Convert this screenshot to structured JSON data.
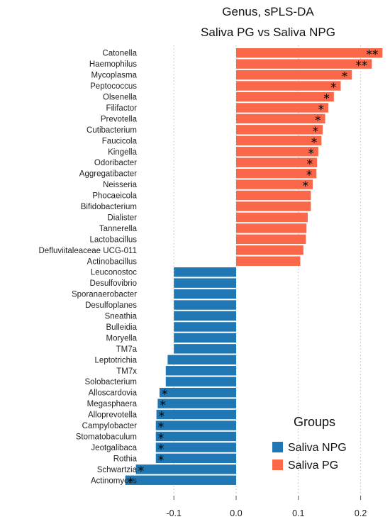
{
  "chart_data": {
    "type": "bar",
    "orientation": "horizontal",
    "title": [
      "Genus, sPLS-DA",
      "Saliva PG vs Saliva NPG"
    ],
    "xlim": [
      -0.19,
      0.24
    ],
    "xticks": [
      -0.1,
      0.0,
      0.1,
      0.2
    ],
    "xtick_labels": [
      "-0.1",
      "0.0",
      "0.1",
      "0.2"
    ],
    "grid": "vertical dotted",
    "legend": {
      "title": "Groups",
      "position": "bottom-right",
      "items": [
        {
          "label": "Saliva NPG",
          "color": "#1f78b4"
        },
        {
          "label": "Saliva PG",
          "color": "#fa6849"
        }
      ]
    },
    "bars": [
      {
        "name": "Catonella",
        "value": 0.235,
        "group": "Saliva PG",
        "sig": "**"
      },
      {
        "name": "Haemophilus",
        "value": 0.218,
        "group": "Saliva PG",
        "sig": "**"
      },
      {
        "name": "Mycoplasma",
        "value": 0.186,
        "group": "Saliva PG",
        "sig": "*"
      },
      {
        "name": "Peptococcus",
        "value": 0.168,
        "group": "Saliva PG",
        "sig": "*"
      },
      {
        "name": "Olsenella",
        "value": 0.157,
        "group": "Saliva PG",
        "sig": "*"
      },
      {
        "name": "Filifactor",
        "value": 0.148,
        "group": "Saliva PG",
        "sig": "*"
      },
      {
        "name": "Prevotella",
        "value": 0.143,
        "group": "Saliva PG",
        "sig": "*"
      },
      {
        "name": "Cutibacterium",
        "value": 0.139,
        "group": "Saliva PG",
        "sig": "*"
      },
      {
        "name": "Faucicola",
        "value": 0.137,
        "group": "Saliva PG",
        "sig": "*"
      },
      {
        "name": "Kingella",
        "value": 0.132,
        "group": "Saliva PG",
        "sig": "*"
      },
      {
        "name": "Odoribacter",
        "value": 0.13,
        "group": "Saliva PG",
        "sig": "*"
      },
      {
        "name": "Aggregatibacter",
        "value": 0.129,
        "group": "Saliva PG",
        "sig": "*"
      },
      {
        "name": "Neisseria",
        "value": 0.123,
        "group": "Saliva PG",
        "sig": "*"
      },
      {
        "name": "Phocaeicola",
        "value": 0.12,
        "group": "Saliva PG",
        "sig": ""
      },
      {
        "name": "Bifidobacterium",
        "value": 0.12,
        "group": "Saliva PG",
        "sig": ""
      },
      {
        "name": "Dialister",
        "value": 0.115,
        "group": "Saliva PG",
        "sig": ""
      },
      {
        "name": "Tannerella",
        "value": 0.113,
        "group": "Saliva PG",
        "sig": ""
      },
      {
        "name": "Lactobacillus",
        "value": 0.112,
        "group": "Saliva PG",
        "sig": ""
      },
      {
        "name": "Defluviitaleaceae UCG-011",
        "value": 0.108,
        "group": "Saliva PG",
        "sig": ""
      },
      {
        "name": "Actinobacillus",
        "value": 0.103,
        "group": "Saliva PG",
        "sig": ""
      },
      {
        "name": "Leuconostoc",
        "value": -0.1,
        "group": "Saliva NPG",
        "sig": ""
      },
      {
        "name": "Desulfovibrio",
        "value": -0.1,
        "group": "Saliva NPG",
        "sig": ""
      },
      {
        "name": "Sporanaerobacter",
        "value": -0.1,
        "group": "Saliva NPG",
        "sig": ""
      },
      {
        "name": "Desulfoplanes",
        "value": -0.1,
        "group": "Saliva NPG",
        "sig": ""
      },
      {
        "name": "Sneathia",
        "value": -0.1,
        "group": "Saliva NPG",
        "sig": ""
      },
      {
        "name": "Bulleidia",
        "value": -0.1,
        "group": "Saliva NPG",
        "sig": ""
      },
      {
        "name": "Moryella",
        "value": -0.1,
        "group": "Saliva NPG",
        "sig": ""
      },
      {
        "name": "TM7a",
        "value": -0.1,
        "group": "Saliva NPG",
        "sig": ""
      },
      {
        "name": "Leptotrichia",
        "value": -0.11,
        "group": "Saliva NPG",
        "sig": ""
      },
      {
        "name": "TM7x",
        "value": -0.113,
        "group": "Saliva NPG",
        "sig": ""
      },
      {
        "name": "Solobacterium",
        "value": -0.113,
        "group": "Saliva NPG",
        "sig": ""
      },
      {
        "name": "Alloscardovia",
        "value": -0.123,
        "group": "Saliva NPG",
        "sig": "*"
      },
      {
        "name": "Megasphaera",
        "value": -0.126,
        "group": "Saliva NPG",
        "sig": "*"
      },
      {
        "name": "Alloprevotella",
        "value": -0.128,
        "group": "Saliva NPG",
        "sig": "*"
      },
      {
        "name": "Campylobacter",
        "value": -0.129,
        "group": "Saliva NPG",
        "sig": "*"
      },
      {
        "name": "Stomatobaculum",
        "value": -0.129,
        "group": "Saliva NPG",
        "sig": "*"
      },
      {
        "name": "Jeotgalibaca",
        "value": -0.129,
        "group": "Saliva NPG",
        "sig": "*"
      },
      {
        "name": "Rothia",
        "value": -0.129,
        "group": "Saliva NPG",
        "sig": "*"
      },
      {
        "name": "Schwartzia",
        "value": -0.161,
        "group": "Saliva NPG",
        "sig": "*"
      },
      {
        "name": "Actinomyces",
        "value": -0.178,
        "group": "Saliva NPG",
        "sig": "*"
      }
    ]
  }
}
